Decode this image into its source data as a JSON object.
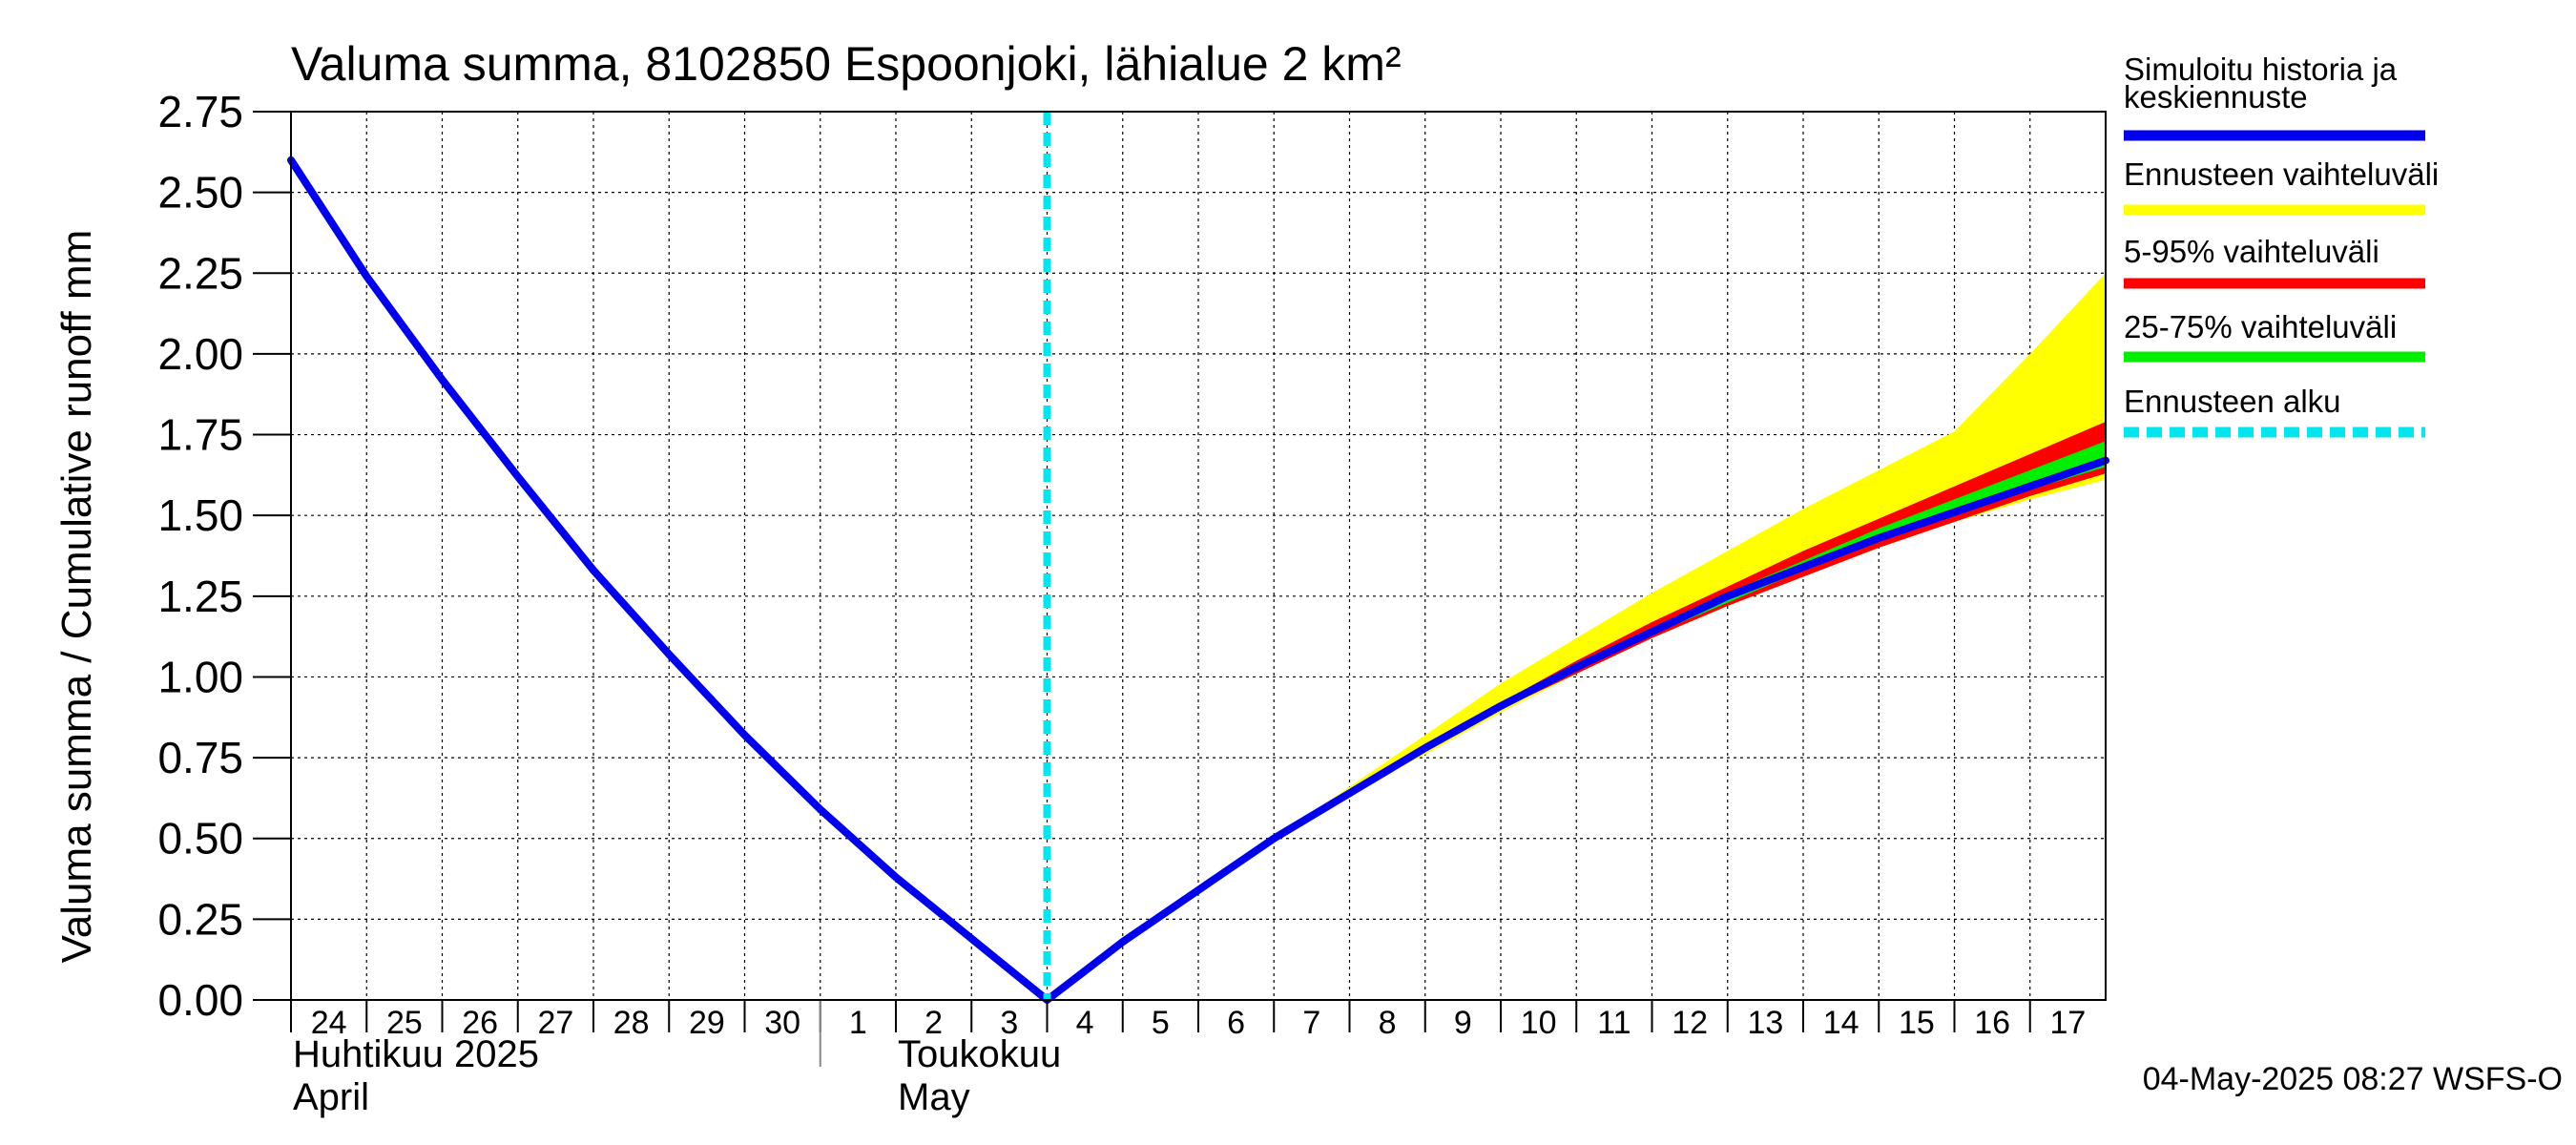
{
  "chart_data": {
    "type": "area",
    "title": "Valuma summa, 8102850 Espoonjoki, lähialue 2 km²",
    "ylabel": "Valuma summa / Cumulative runoff     mm",
    "ylim": [
      0,
      2.75
    ],
    "yticks": [
      "0.00",
      "0.25",
      "0.50",
      "0.75",
      "1.00",
      "1.25",
      "1.50",
      "1.75",
      "2.00",
      "2.25",
      "2.50",
      "2.75"
    ],
    "ytick_values": [
      0,
      0.25,
      0.5,
      0.75,
      1.0,
      1.25,
      1.5,
      1.75,
      2.0,
      2.25,
      2.5,
      2.75
    ],
    "xlim": [
      0,
      24
    ],
    "xticks": [
      {
        "day": 0,
        "label": "24"
      },
      {
        "day": 1,
        "label": "25"
      },
      {
        "day": 2,
        "label": "26"
      },
      {
        "day": 3,
        "label": "27"
      },
      {
        "day": 4,
        "label": "28"
      },
      {
        "day": 5,
        "label": "29"
      },
      {
        "day": 6,
        "label": "30"
      },
      {
        "day": 7,
        "label": "1"
      },
      {
        "day": 8,
        "label": "2"
      },
      {
        "day": 9,
        "label": "3"
      },
      {
        "day": 10,
        "label": "4"
      },
      {
        "day": 11,
        "label": "5"
      },
      {
        "day": 12,
        "label": "6"
      },
      {
        "day": 13,
        "label": "7"
      },
      {
        "day": 14,
        "label": "8"
      },
      {
        "day": 15,
        "label": "9"
      },
      {
        "day": 16,
        "label": "10"
      },
      {
        "day": 17,
        "label": "11"
      },
      {
        "day": 18,
        "label": "12"
      },
      {
        "day": 19,
        "label": "13"
      },
      {
        "day": 20,
        "label": "14"
      },
      {
        "day": 21,
        "label": "15"
      },
      {
        "day": 22,
        "label": "16"
      },
      {
        "day": 23,
        "label": "17"
      }
    ],
    "month_labels": [
      {
        "day": 0,
        "line1": "Huhtikuu  2025",
        "line2": "April"
      },
      {
        "day": 8,
        "line1": "Toukokuu",
        "line2": "May"
      }
    ],
    "month_boundary_day": 7,
    "grid": true,
    "forecast_start_day": 10,
    "colors": {
      "median": "#0000ee",
      "range": "#ffff00",
      "p5_95": "#ff0000",
      "p25_75": "#00ee00",
      "forecast_start": "#00e5ee",
      "grid": "#000000"
    },
    "series": [
      {
        "name": "Simuloitu historia ja keskiennuste",
        "x": [
          0,
          1,
          2,
          3,
          4,
          5,
          6,
          7,
          8,
          9,
          10,
          11,
          12,
          13,
          14,
          15,
          16,
          17,
          18,
          19,
          20,
          21,
          22,
          23,
          24
        ],
        "values": [
          2.6,
          2.24,
          1.92,
          1.62,
          1.33,
          1.07,
          0.82,
          0.59,
          0.38,
          0.19,
          0.0,
          0.18,
          0.34,
          0.5,
          0.64,
          0.78,
          0.91,
          1.03,
          1.14,
          1.25,
          1.34,
          1.43,
          1.51,
          1.59,
          1.67
        ]
      },
      {
        "name": "Ennusteen vaihteluväli",
        "x": [
          10,
          11,
          12,
          13,
          14,
          15,
          16,
          17,
          18,
          19,
          20,
          21,
          22,
          23,
          24
        ],
        "lower": [
          0.0,
          0.18,
          0.34,
          0.5,
          0.64,
          0.76,
          0.89,
          1.01,
          1.12,
          1.22,
          1.31,
          1.4,
          1.48,
          1.55,
          1.61
        ],
        "upper": [
          0.0,
          0.18,
          0.34,
          0.5,
          0.66,
          0.82,
          0.98,
          1.12,
          1.26,
          1.39,
          1.52,
          1.64,
          1.76,
          2.0,
          2.25
        ]
      },
      {
        "name": "5-95% vaihteluväli",
        "x": [
          10,
          11,
          12,
          13,
          14,
          15,
          16,
          17,
          18,
          19,
          20,
          21,
          22,
          23,
          24
        ],
        "lower": [
          0.0,
          0.18,
          0.34,
          0.5,
          0.64,
          0.77,
          0.9,
          1.01,
          1.12,
          1.22,
          1.31,
          1.4,
          1.48,
          1.56,
          1.63
        ],
        "upper": [
          0.0,
          0.18,
          0.34,
          0.5,
          0.65,
          0.79,
          0.92,
          1.05,
          1.17,
          1.28,
          1.39,
          1.49,
          1.59,
          1.69,
          1.79
        ]
      },
      {
        "name": "25-75% vaihteluväli",
        "x": [
          10,
          11,
          12,
          13,
          14,
          15,
          16,
          17,
          18,
          19,
          20,
          21,
          22,
          23,
          24
        ],
        "lower": [
          0.0,
          0.18,
          0.34,
          0.5,
          0.64,
          0.77,
          0.9,
          1.02,
          1.13,
          1.23,
          1.33,
          1.42,
          1.5,
          1.58,
          1.65
        ],
        "upper": [
          0.0,
          0.18,
          0.34,
          0.5,
          0.64,
          0.78,
          0.91,
          1.04,
          1.15,
          1.26,
          1.36,
          1.46,
          1.55,
          1.64,
          1.73
        ]
      }
    ],
    "legend": [
      {
        "label": "Simuloitu historia ja keskiennuste",
        "color": "#0000ee",
        "style": "solid"
      },
      {
        "label": "Ennusteen vaihteluväli",
        "color": "#ffff00",
        "style": "solid"
      },
      {
        "label": "5-95% vaihteluväli",
        "color": "#ff0000",
        "style": "solid"
      },
      {
        "label": "25-75% vaihteluväli",
        "color": "#00ee00",
        "style": "solid"
      },
      {
        "label": "Ennusteen alku",
        "color": "#00e5ee",
        "style": "dashed"
      }
    ],
    "legend_placement": "right",
    "footer": "04-May-2025 08:27 WSFS-O"
  }
}
